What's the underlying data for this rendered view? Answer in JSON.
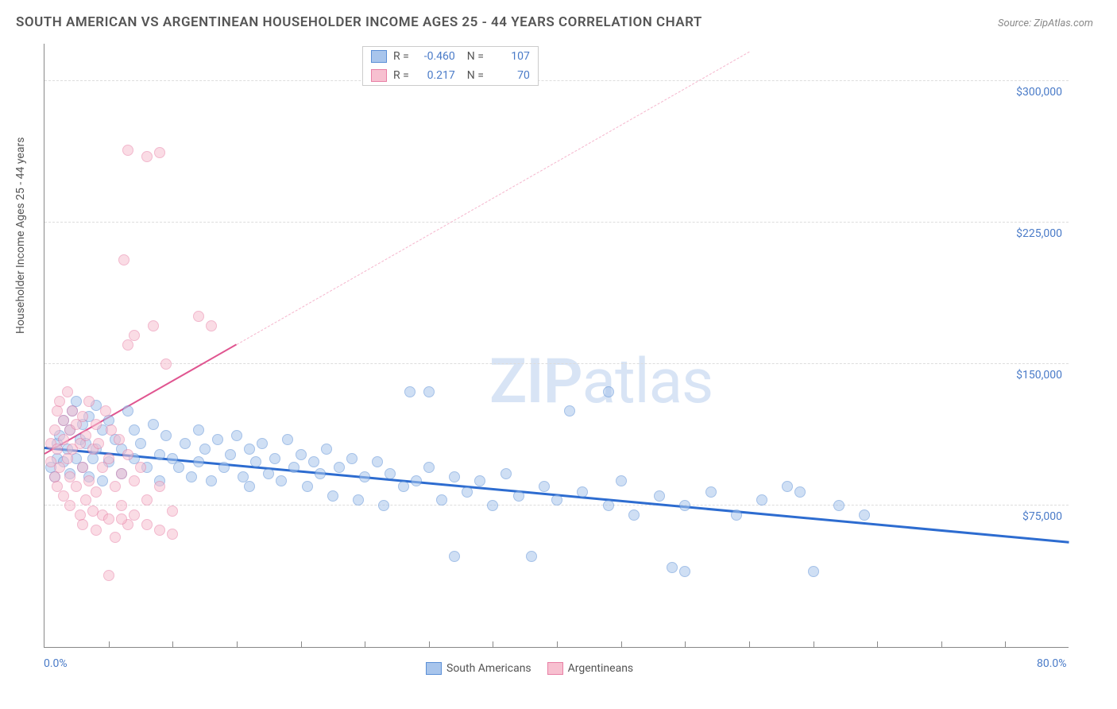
{
  "title": "SOUTH AMERICAN VS ARGENTINEAN HOUSEHOLDER INCOME AGES 25 - 44 YEARS CORRELATION CHART",
  "source": "Source: ZipAtlas.com",
  "watermark_a": "ZIP",
  "watermark_b": "atlas",
  "y_axis_title": "Householder Income Ages 25 - 44 years",
  "chart": {
    "type": "scatter",
    "background_color": "#ffffff",
    "grid_color": "#dddddd",
    "axis_color": "#888888",
    "xlim": [
      0,
      80
    ],
    "ylim": [
      0,
      320000
    ],
    "x_tick_major": [
      0,
      80
    ],
    "x_tick_minor_step": 5,
    "y_ticks": [
      75000,
      150000,
      225000,
      300000
    ],
    "x_tick_labels": {
      "0": "0.0%",
      "80": "80.0%"
    },
    "y_tick_labels": {
      "75000": "$75,000",
      "150000": "$150,000",
      "225000": "$225,000",
      "300000": "$300,000"
    },
    "label_color": "#4a7bc8",
    "label_fontsize": 14,
    "title_fontsize": 17,
    "title_color": "#555555",
    "marker_radius": 7,
    "marker_opacity": 0.55,
    "series": [
      {
        "name": "South Americans",
        "fill_color": "#a8c5ec",
        "stroke_color": "#5b8fd6",
        "trend_color": "#2d6cd0",
        "trend_width": 2.5,
        "r": -0.46,
        "n": 107,
        "trend": {
          "x1": 0,
          "y1": 105000,
          "x2": 80,
          "y2": 55000
        },
        "points": [
          [
            0.5,
            95000
          ],
          [
            0.8,
            90000
          ],
          [
            1,
            108000
          ],
          [
            1,
            100000
          ],
          [
            1.2,
            112000
          ],
          [
            1.5,
            120000
          ],
          [
            1.5,
            98000
          ],
          [
            1.8,
            105000
          ],
          [
            2,
            115000
          ],
          [
            2,
            92000
          ],
          [
            2.2,
            125000
          ],
          [
            2.5,
            130000
          ],
          [
            2.5,
            100000
          ],
          [
            2.8,
            110000
          ],
          [
            3,
            118000
          ],
          [
            3,
            95000
          ],
          [
            3.2,
            108000
          ],
          [
            3.5,
            122000
          ],
          [
            3.5,
            90000
          ],
          [
            3.8,
            100000
          ],
          [
            4,
            128000
          ],
          [
            4,
            105000
          ],
          [
            4.5,
            115000
          ],
          [
            4.5,
            88000
          ],
          [
            5,
            120000
          ],
          [
            5,
            98000
          ],
          [
            5.5,
            110000
          ],
          [
            6,
            105000
          ],
          [
            6,
            92000
          ],
          [
            6.5,
            125000
          ],
          [
            7,
            100000
          ],
          [
            7,
            115000
          ],
          [
            7.5,
            108000
          ],
          [
            8,
            95000
          ],
          [
            8.5,
            118000
          ],
          [
            9,
            102000
          ],
          [
            9,
            88000
          ],
          [
            9.5,
            112000
          ],
          [
            10,
            100000
          ],
          [
            10.5,
            95000
          ],
          [
            11,
            108000
          ],
          [
            11.5,
            90000
          ],
          [
            12,
            115000
          ],
          [
            12,
            98000
          ],
          [
            12.5,
            105000
          ],
          [
            13,
            88000
          ],
          [
            13.5,
            110000
          ],
          [
            14,
            95000
          ],
          [
            14.5,
            102000
          ],
          [
            15,
            112000
          ],
          [
            15.5,
            90000
          ],
          [
            16,
            105000
          ],
          [
            16,
            85000
          ],
          [
            16.5,
            98000
          ],
          [
            17,
            108000
          ],
          [
            17.5,
            92000
          ],
          [
            18,
            100000
          ],
          [
            18.5,
            88000
          ],
          [
            19,
            110000
          ],
          [
            19.5,
            95000
          ],
          [
            20,
            102000
          ],
          [
            20.5,
            85000
          ],
          [
            21,
            98000
          ],
          [
            21.5,
            92000
          ],
          [
            22,
            105000
          ],
          [
            22.5,
            80000
          ],
          [
            23,
            95000
          ],
          [
            24,
            100000
          ],
          [
            24.5,
            78000
          ],
          [
            25,
            90000
          ],
          [
            26,
            98000
          ],
          [
            26.5,
            75000
          ],
          [
            27,
            92000
          ],
          [
            28,
            85000
          ],
          [
            28.5,
            135000
          ],
          [
            29,
            88000
          ],
          [
            30,
            95000
          ],
          [
            30,
            135000
          ],
          [
            31,
            78000
          ],
          [
            32,
            90000
          ],
          [
            32,
            48000
          ],
          [
            33,
            82000
          ],
          [
            34,
            88000
          ],
          [
            35,
            75000
          ],
          [
            36,
            92000
          ],
          [
            37,
            80000
          ],
          [
            38,
            48000
          ],
          [
            39,
            85000
          ],
          [
            40,
            78000
          ],
          [
            41,
            125000
          ],
          [
            42,
            82000
          ],
          [
            44,
            75000
          ],
          [
            44,
            135000
          ],
          [
            45,
            88000
          ],
          [
            46,
            70000
          ],
          [
            48,
            80000
          ],
          [
            49,
            42000
          ],
          [
            50,
            75000
          ],
          [
            50,
            40000
          ],
          [
            52,
            82000
          ],
          [
            54,
            70000
          ],
          [
            56,
            78000
          ],
          [
            58,
            85000
          ],
          [
            59,
            82000
          ],
          [
            60,
            40000
          ],
          [
            62,
            75000
          ],
          [
            64,
            70000
          ]
        ]
      },
      {
        "name": "Argentineans",
        "fill_color": "#f7c0d0",
        "stroke_color": "#e87fa5",
        "trend_color": "#e05590",
        "trend_width": 2,
        "trend_dash_color": "#f5b5cc",
        "r": 0.217,
        "n": 70,
        "trend": {
          "x1": 0,
          "y1": 102000,
          "x2": 15,
          "y2": 160000
        },
        "trend_dash": {
          "x1": 15,
          "y1": 160000,
          "x2": 55,
          "y2": 315000
        },
        "points": [
          [
            0.5,
            108000
          ],
          [
            0.5,
            98000
          ],
          [
            0.8,
            115000
          ],
          [
            0.8,
            90000
          ],
          [
            1,
            125000
          ],
          [
            1,
            105000
          ],
          [
            1,
            85000
          ],
          [
            1.2,
            130000
          ],
          [
            1.2,
            95000
          ],
          [
            1.5,
            120000
          ],
          [
            1.5,
            110000
          ],
          [
            1.5,
            80000
          ],
          [
            1.8,
            135000
          ],
          [
            1.8,
            100000
          ],
          [
            2,
            115000
          ],
          [
            2,
            90000
          ],
          [
            2,
            75000
          ],
          [
            2.2,
            125000
          ],
          [
            2.2,
            105000
          ],
          [
            2.5,
            118000
          ],
          [
            2.5,
            85000
          ],
          [
            2.8,
            108000
          ],
          [
            2.8,
            70000
          ],
          [
            3,
            122000
          ],
          [
            3,
            95000
          ],
          [
            3,
            65000
          ],
          [
            3.2,
            112000
          ],
          [
            3.2,
            78000
          ],
          [
            3.5,
            130000
          ],
          [
            3.5,
            88000
          ],
          [
            3.8,
            105000
          ],
          [
            3.8,
            72000
          ],
          [
            4,
            118000
          ],
          [
            4,
            82000
          ],
          [
            4,
            62000
          ],
          [
            4.2,
            108000
          ],
          [
            4.5,
            95000
          ],
          [
            4.5,
            70000
          ],
          [
            4.8,
            125000
          ],
          [
            5,
            100000
          ],
          [
            5,
            68000
          ],
          [
            5.2,
            115000
          ],
          [
            5.5,
            85000
          ],
          [
            5.5,
            58000
          ],
          [
            5.8,
            110000
          ],
          [
            6,
            92000
          ],
          [
            6,
            75000
          ],
          [
            6.2,
            205000
          ],
          [
            6.5,
            102000
          ],
          [
            6.5,
            65000
          ],
          [
            6.5,
            160000
          ],
          [
            6.5,
            263000
          ],
          [
            7,
            88000
          ],
          [
            7,
            165000
          ],
          [
            7.5,
            95000
          ],
          [
            8,
            260000
          ],
          [
            8,
            78000
          ],
          [
            8.5,
            170000
          ],
          [
            9,
            85000
          ],
          [
            9,
            262000
          ],
          [
            9.5,
            150000
          ],
          [
            10,
            72000
          ],
          [
            12,
            175000
          ],
          [
            13,
            170000
          ],
          [
            5,
            38000
          ],
          [
            6,
            68000
          ],
          [
            7,
            70000
          ],
          [
            8,
            65000
          ],
          [
            9,
            62000
          ],
          [
            10,
            60000
          ]
        ]
      }
    ]
  },
  "stats_box": {
    "border_color": "#cccccc",
    "rows": [
      {
        "swatch_fill": "#a8c5ec",
        "swatch_stroke": "#5b8fd6",
        "r": "-0.460",
        "n": "107"
      },
      {
        "swatch_fill": "#f7c0d0",
        "swatch_stroke": "#e87fa5",
        "r": "0.217",
        "n": "70"
      }
    ]
  },
  "bottom_legend": [
    {
      "swatch_fill": "#a8c5ec",
      "swatch_stroke": "#5b8fd6",
      "label": "South Americans"
    },
    {
      "swatch_fill": "#f7c0d0",
      "swatch_stroke": "#e87fa5",
      "label": "Argentineans"
    }
  ]
}
